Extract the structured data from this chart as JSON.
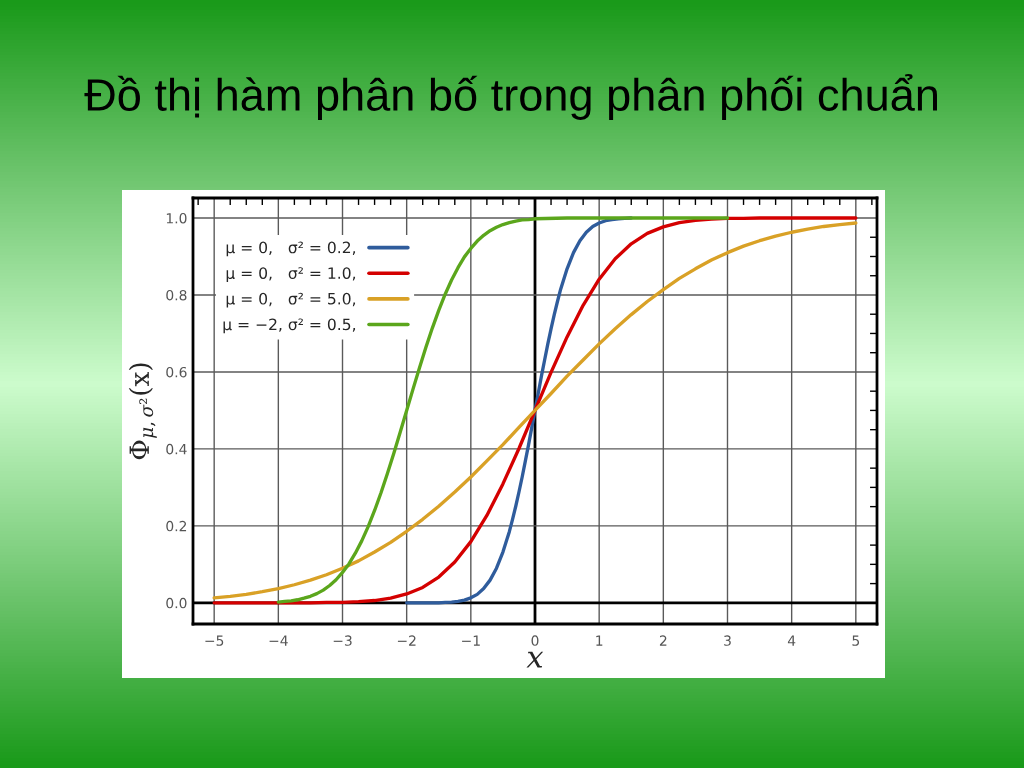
{
  "chart_data": {
    "type": "line",
    "title": "Đồ thị hàm phân bố trong phân phối chuẩn",
    "xlabel": "x",
    "ylabel": "Φ$_{μ,σ²}$(x)",
    "series": [
      {
        "name": "μ = 0,   σ² = 0.2,",
        "color": "#2f5c9c",
        "x": [
          -2,
          -1.75,
          -1.5,
          -1.4,
          -1.3,
          -1.2,
          -1.1,
          -1.0,
          -0.9,
          -0.8,
          -0.7,
          -0.6,
          -0.5,
          -0.4,
          -0.35,
          -0.3,
          -0.25,
          -0.2,
          -0.15,
          -0.1,
          -0.05,
          0,
          0.05,
          0.1,
          0.15,
          0.2,
          0.25,
          0.3,
          0.35,
          0.4,
          0.5,
          0.6,
          0.7,
          0.8,
          0.9,
          1.0,
          1.1,
          1.2,
          1.3,
          1.4,
          1.5
        ],
        "values": [
          0,
          0,
          0,
          0.001,
          0.002,
          0.004,
          0.007,
          0.013,
          0.022,
          0.037,
          0.059,
          0.09,
          0.132,
          0.185,
          0.217,
          0.251,
          0.288,
          0.327,
          0.369,
          0.411,
          0.456,
          0.5,
          0.544,
          0.589,
          0.631,
          0.673,
          0.712,
          0.749,
          0.783,
          0.815,
          0.868,
          0.91,
          0.941,
          0.963,
          0.978,
          0.987,
          0.993,
          0.996,
          0.998,
          0.999,
          1
        ]
      },
      {
        "name": "μ = 0,   σ² = 1.0,",
        "color": "#d40000",
        "x": [
          -5,
          -4.75,
          -4.5,
          -4.25,
          -4,
          -3.75,
          -3.5,
          -3.25,
          -3,
          -2.75,
          -2.5,
          -2.25,
          -2,
          -1.75,
          -1.5,
          -1.25,
          -1,
          -0.75,
          -0.5,
          -0.25,
          0,
          0.25,
          0.5,
          0.75,
          1,
          1.25,
          1.5,
          1.75,
          2,
          2.25,
          2.5,
          2.75,
          3,
          3.25,
          3.5,
          3.75,
          4,
          4.25,
          4.5,
          4.75,
          5
        ],
        "values": [
          0,
          0,
          0,
          0,
          0,
          0,
          0,
          0.001,
          0.001,
          0.003,
          0.006,
          0.012,
          0.023,
          0.04,
          0.067,
          0.106,
          0.159,
          0.227,
          0.309,
          0.401,
          0.5,
          0.599,
          0.691,
          0.773,
          0.841,
          0.894,
          0.933,
          0.96,
          0.977,
          0.988,
          0.994,
          0.997,
          0.999,
          0.999,
          1,
          1,
          1,
          1,
          1,
          1,
          1
        ]
      },
      {
        "name": "μ = 0,   σ² = 5.0,",
        "color": "#d9a126",
        "x": [
          -5,
          -4.75,
          -4.5,
          -4.25,
          -4,
          -3.75,
          -3.5,
          -3.25,
          -3,
          -2.75,
          -2.5,
          -2.25,
          -2,
          -1.75,
          -1.5,
          -1.25,
          -1,
          -0.75,
          -0.5,
          -0.25,
          0,
          0.25,
          0.5,
          0.75,
          1,
          1.25,
          1.5,
          1.75,
          2,
          2.25,
          2.5,
          2.75,
          3,
          3.25,
          3.5,
          3.75,
          4,
          4.25,
          4.5,
          4.75,
          5
        ],
        "values": [
          0.013,
          0.017,
          0.022,
          0.029,
          0.037,
          0.047,
          0.059,
          0.073,
          0.09,
          0.109,
          0.132,
          0.157,
          0.186,
          0.217,
          0.251,
          0.288,
          0.327,
          0.369,
          0.411,
          0.456,
          0.5,
          0.544,
          0.589,
          0.631,
          0.673,
          0.712,
          0.749,
          0.783,
          0.814,
          0.843,
          0.868,
          0.891,
          0.91,
          0.927,
          0.941,
          0.953,
          0.963,
          0.971,
          0.978,
          0.983,
          0.987
        ]
      },
      {
        "name": "μ = −2, σ² = 0.5,",
        "color": "#5ba61c",
        "x": [
          -4.0,
          -3.9,
          -3.8,
          -3.7,
          -3.6,
          -3.5,
          -3.4,
          -3.3,
          -3.2,
          -3.1,
          -3.0,
          -2.9,
          -2.8,
          -2.7,
          -2.6,
          -2.5,
          -2.4,
          -2.3,
          -2.2,
          -2.1,
          -2.0,
          -1.9,
          -1.8,
          -1.7,
          -1.6,
          -1.5,
          -1.4,
          -1.3,
          -1.2,
          -1.1,
          -1.0,
          -0.9,
          -0.8,
          -0.7,
          -0.6,
          -0.5,
          -0.4,
          -0.3,
          -0.2,
          -0.1,
          0,
          0.5,
          1,
          2,
          3
        ],
        "values": [
          0.002,
          0.004,
          0.005,
          0.008,
          0.012,
          0.017,
          0.024,
          0.033,
          0.045,
          0.06,
          0.079,
          0.101,
          0.129,
          0.161,
          0.198,
          0.24,
          0.286,
          0.336,
          0.389,
          0.444,
          0.5,
          0.556,
          0.611,
          0.664,
          0.714,
          0.76,
          0.802,
          0.839,
          0.871,
          0.899,
          0.921,
          0.94,
          0.955,
          0.967,
          0.976,
          0.983,
          0.988,
          0.992,
          0.995,
          0.996,
          0.998,
          1,
          1,
          1,
          1
        ]
      }
    ],
    "xlim": [
      -5.33,
      5.33
    ],
    "ylim": [
      -0.055,
      1.052
    ],
    "xticks": [
      {
        "value": -5,
        "label": "−5"
      },
      {
        "value": -4,
        "label": "−4"
      },
      {
        "value": -3,
        "label": "−3"
      },
      {
        "value": -2,
        "label": "−2"
      },
      {
        "value": -1,
        "label": "−1"
      },
      0,
      1,
      2,
      3,
      4,
      5,
      {
        "value": -5.25,
        "label": null
      },
      {
        "value": -4.75,
        "label": null
      },
      {
        "value": -4.5,
        "label": null
      },
      {
        "value": -4.25,
        "label": null
      },
      {
        "value": -3.75,
        "label": null
      },
      {
        "value": -3.5,
        "label": null
      },
      {
        "value": -3.25,
        "label": null
      },
      {
        "value": -2.75,
        "label": null
      },
      {
        "value": -2.5,
        "label": null
      },
      {
        "value": -2.25,
        "label": null
      },
      {
        "value": -1.75,
        "label": null
      },
      {
        "value": -1.5,
        "label": null
      },
      {
        "value": -1.25,
        "label": null
      },
      {
        "value": -0.75,
        "label": null
      },
      {
        "value": -0.5,
        "label": null
      },
      {
        "value": -0.25,
        "label": null
      },
      {
        "value": 0.25,
        "label": null
      },
      {
        "value": 0.5,
        "label": null
      },
      {
        "value": 0.75,
        "label": null
      },
      {
        "value": 1.25,
        "label": null
      },
      {
        "value": 1.5,
        "label": null
      },
      {
        "value": 1.75,
        "label": null
      },
      {
        "value": 2.25,
        "label": null
      },
      {
        "value": 2.5,
        "label": null
      },
      {
        "value": 2.75,
        "label": null
      },
      {
        "value": 3.25,
        "label": null
      },
      {
        "value": 3.5,
        "label": null
      },
      {
        "value": 3.75,
        "label": null
      },
      {
        "value": 4.25,
        "label": null
      },
      {
        "value": 4.5,
        "label": null
      },
      {
        "value": 4.75,
        "label": null
      },
      {
        "value": 5.25,
        "label": null
      }
    ],
    "yticks": [
      {
        "value": 0,
        "label": "0.0"
      },
      {
        "value": 0.2,
        "label": "0.2"
      },
      {
        "value": 0.4,
        "label": "0.4"
      },
      {
        "value": 0.6,
        "label": "0.6"
      },
      {
        "value": 0.8,
        "label": "0.8"
      },
      {
        "value": 1.0,
        "label": "1.0"
      },
      {
        "value": 0.05,
        "label": null
      },
      {
        "value": 0.1,
        "label": null
      },
      {
        "value": 0.15,
        "label": null
      },
      {
        "value": 0.25,
        "label": null
      },
      {
        "value": 0.3,
        "label": null
      },
      {
        "value": 0.35,
        "label": null
      },
      {
        "value": 0.45,
        "label": null
      },
      {
        "value": 0.5,
        "label": null
      },
      {
        "value": 0.55,
        "label": null
      },
      {
        "value": 0.65,
        "label": null
      },
      {
        "value": 0.7,
        "label": null
      },
      {
        "value": 0.75,
        "label": null
      },
      {
        "value": 0.85,
        "label": null
      },
      {
        "value": 0.9,
        "label": null
      },
      {
        "value": 0.95,
        "label": null
      }
    ],
    "grid": true,
    "legend": "top left",
    "line_style": "solid"
  }
}
